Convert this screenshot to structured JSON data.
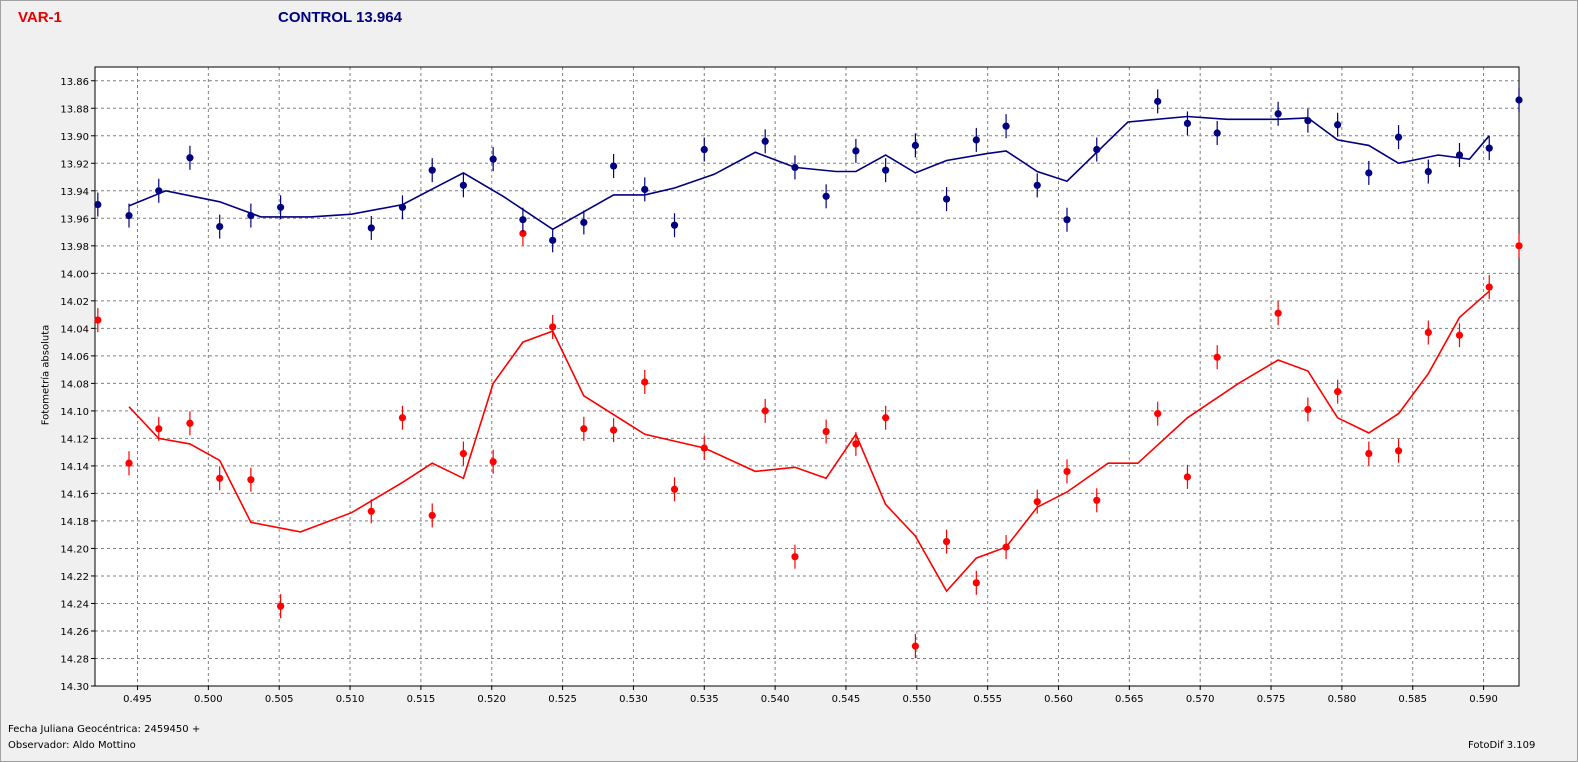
{
  "header": {
    "var_title": "VAR-1",
    "control_title": "CONTROL 13.964"
  },
  "footer": {
    "date_label": "Fecha Juliana Geocéntrica: 2459450 +",
    "observer": "Observador: Aldo Mottino",
    "software": "FotoDif 3.109"
  },
  "colors": {
    "var": "#ff0000",
    "control": "#000080",
    "grid": "#808080",
    "plot_bg": "#ffffff"
  },
  "chart_data": {
    "type": "scatter",
    "title": "",
    "xlabel": "Fecha Juliana Geocéntrica: 2459450 +",
    "ylabel": "Fotometría absoluta",
    "xlim": [
      0.492,
      0.5925
    ],
    "ylim": [
      13.85,
      14.3
    ],
    "y_inverted": true,
    "grid": true,
    "x_ticks": [
      "0.495",
      "0.500",
      "0.505",
      "0.510",
      "0.515",
      "0.520",
      "0.525",
      "0.530",
      "0.535",
      "0.540",
      "0.545",
      "0.550",
      "0.555",
      "0.560",
      "0.565",
      "0.570",
      "0.575",
      "0.580",
      "0.585",
      "0.590"
    ],
    "y_ticks": [
      "13.86",
      "13.88",
      "13.90",
      "13.92",
      "13.94",
      "13.96",
      "13.98",
      "14.00",
      "14.02",
      "14.04",
      "14.06",
      "14.08",
      "14.10",
      "14.12",
      "14.14",
      "14.16",
      "14.18",
      "14.20",
      "14.22",
      "14.24",
      "14.26",
      "14.28",
      "14.30"
    ],
    "series": [
      {
        "name": "VAR-1",
        "color": "#ff0000",
        "points": [
          [
            0.4922,
            14.034
          ],
          [
            0.4944,
            14.138
          ],
          [
            0.4965,
            14.113
          ],
          [
            0.4987,
            14.109
          ],
          [
            0.5008,
            14.149
          ],
          [
            0.503,
            14.15
          ],
          [
            0.5051,
            14.242
          ],
          [
            0.5115,
            14.173
          ],
          [
            0.5137,
            14.105
          ],
          [
            0.5158,
            14.176
          ],
          [
            0.518,
            14.131
          ],
          [
            0.5201,
            14.137
          ],
          [
            0.5222,
            13.971
          ],
          [
            0.5243,
            14.039
          ],
          [
            0.5265,
            14.113
          ],
          [
            0.5286,
            14.114
          ],
          [
            0.5308,
            14.079
          ],
          [
            0.5329,
            14.157
          ],
          [
            0.535,
            14.127
          ],
          [
            0.5393,
            14.1
          ],
          [
            0.5414,
            14.206
          ],
          [
            0.5436,
            14.115
          ],
          [
            0.5457,
            14.124
          ],
          [
            0.5478,
            14.105
          ],
          [
            0.5499,
            14.271
          ],
          [
            0.5521,
            14.195
          ],
          [
            0.5542,
            14.225
          ],
          [
            0.5563,
            14.199
          ],
          [
            0.5585,
            14.166
          ],
          [
            0.5606,
            14.144
          ],
          [
            0.5627,
            14.165
          ],
          [
            0.567,
            14.102
          ],
          [
            0.5691,
            14.148
          ],
          [
            0.5712,
            14.061
          ],
          [
            0.5755,
            14.029
          ],
          [
            0.5776,
            14.099
          ],
          [
            0.5797,
            14.086
          ],
          [
            0.5819,
            14.131
          ],
          [
            0.584,
            14.129
          ],
          [
            0.5861,
            14.043
          ],
          [
            0.5883,
            14.045
          ],
          [
            0.5904,
            14.01
          ],
          [
            0.5925,
            13.98
          ]
        ],
        "line": [
          [
            0.4944,
            14.097
          ],
          [
            0.4965,
            14.12
          ],
          [
            0.4987,
            14.124
          ],
          [
            0.5008,
            14.136
          ],
          [
            0.503,
            14.181
          ],
          [
            0.5065,
            14.188
          ],
          [
            0.5101,
            14.174
          ],
          [
            0.5137,
            14.152
          ],
          [
            0.5158,
            14.138
          ],
          [
            0.518,
            14.149
          ],
          [
            0.5201,
            14.08
          ],
          [
            0.5222,
            14.05
          ],
          [
            0.5243,
            14.042
          ],
          [
            0.5265,
            14.089
          ],
          [
            0.5308,
            14.117
          ],
          [
            0.535,
            14.127
          ],
          [
            0.5386,
            14.144
          ],
          [
            0.5414,
            14.141
          ],
          [
            0.5436,
            14.149
          ],
          [
            0.5457,
            14.117
          ],
          [
            0.5478,
            14.168
          ],
          [
            0.5499,
            14.191
          ],
          [
            0.5521,
            14.231
          ],
          [
            0.5542,
            14.207
          ],
          [
            0.5563,
            14.199
          ],
          [
            0.5585,
            14.17
          ],
          [
            0.5606,
            14.159
          ],
          [
            0.5635,
            14.138
          ],
          [
            0.5656,
            14.138
          ],
          [
            0.5691,
            14.105
          ],
          [
            0.5727,
            14.08
          ],
          [
            0.5755,
            14.063
          ],
          [
            0.5776,
            14.071
          ],
          [
            0.5797,
            14.105
          ],
          [
            0.5819,
            14.116
          ],
          [
            0.584,
            14.102
          ],
          [
            0.5861,
            14.073
          ],
          [
            0.5883,
            14.032
          ],
          [
            0.5904,
            14.013
          ]
        ]
      },
      {
        "name": "CONTROL",
        "color": "#000080",
        "points": [
          [
            0.4922,
            13.95
          ],
          [
            0.4944,
            13.958
          ],
          [
            0.4965,
            13.94
          ],
          [
            0.4987,
            13.916
          ],
          [
            0.5008,
            13.966
          ],
          [
            0.503,
            13.958
          ],
          [
            0.5051,
            13.952
          ],
          [
            0.5115,
            13.967
          ],
          [
            0.5137,
            13.952
          ],
          [
            0.5158,
            13.925
          ],
          [
            0.518,
            13.936
          ],
          [
            0.5201,
            13.917
          ],
          [
            0.5222,
            13.961
          ],
          [
            0.5243,
            13.976
          ],
          [
            0.5265,
            13.963
          ],
          [
            0.5286,
            13.922
          ],
          [
            0.5308,
            13.939
          ],
          [
            0.5329,
            13.965
          ],
          [
            0.535,
            13.91
          ],
          [
            0.5393,
            13.904
          ],
          [
            0.5414,
            13.923
          ],
          [
            0.5436,
            13.944
          ],
          [
            0.5457,
            13.911
          ],
          [
            0.5478,
            13.925
          ],
          [
            0.5499,
            13.907
          ],
          [
            0.5521,
            13.946
          ],
          [
            0.5542,
            13.903
          ],
          [
            0.5563,
            13.893
          ],
          [
            0.5585,
            13.936
          ],
          [
            0.5606,
            13.961
          ],
          [
            0.5627,
            13.91
          ],
          [
            0.567,
            13.875
          ],
          [
            0.5691,
            13.891
          ],
          [
            0.5712,
            13.898
          ],
          [
            0.5755,
            13.884
          ],
          [
            0.5776,
            13.889
          ],
          [
            0.5797,
            13.892
          ],
          [
            0.5819,
            13.927
          ],
          [
            0.584,
            13.901
          ],
          [
            0.5861,
            13.926
          ],
          [
            0.5883,
            13.914
          ],
          [
            0.5904,
            13.909
          ],
          [
            0.5925,
            13.874
          ]
        ],
        "line": [
          [
            0.4944,
            13.951
          ],
          [
            0.497,
            13.94
          ],
          [
            0.5008,
            13.948
          ],
          [
            0.5037,
            13.959
          ],
          [
            0.5072,
            13.959
          ],
          [
            0.5101,
            13.957
          ],
          [
            0.5137,
            13.95
          ],
          [
            0.5165,
            13.935
          ],
          [
            0.518,
            13.927
          ],
          [
            0.5208,
            13.944
          ],
          [
            0.5243,
            13.968
          ],
          [
            0.5286,
            13.943
          ],
          [
            0.5308,
            13.943
          ],
          [
            0.5329,
            13.938
          ],
          [
            0.5357,
            13.928
          ],
          [
            0.5386,
            13.912
          ],
          [
            0.5414,
            13.923
          ],
          [
            0.5443,
            13.926
          ],
          [
            0.5457,
            13.926
          ],
          [
            0.5478,
            13.914
          ],
          [
            0.5499,
            13.927
          ],
          [
            0.5521,
            13.918
          ],
          [
            0.5549,
            13.913
          ],
          [
            0.5563,
            13.911
          ],
          [
            0.5585,
            13.926
          ],
          [
            0.5606,
            13.933
          ],
          [
            0.5649,
            13.89
          ],
          [
            0.5691,
            13.886
          ],
          [
            0.5719,
            13.888
          ],
          [
            0.5755,
            13.888
          ],
          [
            0.5776,
            13.887
          ],
          [
            0.5797,
            13.903
          ],
          [
            0.5819,
            13.907
          ],
          [
            0.584,
            13.92
          ],
          [
            0.5868,
            13.914
          ],
          [
            0.589,
            13.917
          ],
          [
            0.5904,
            13.9
          ]
        ]
      }
    ]
  }
}
